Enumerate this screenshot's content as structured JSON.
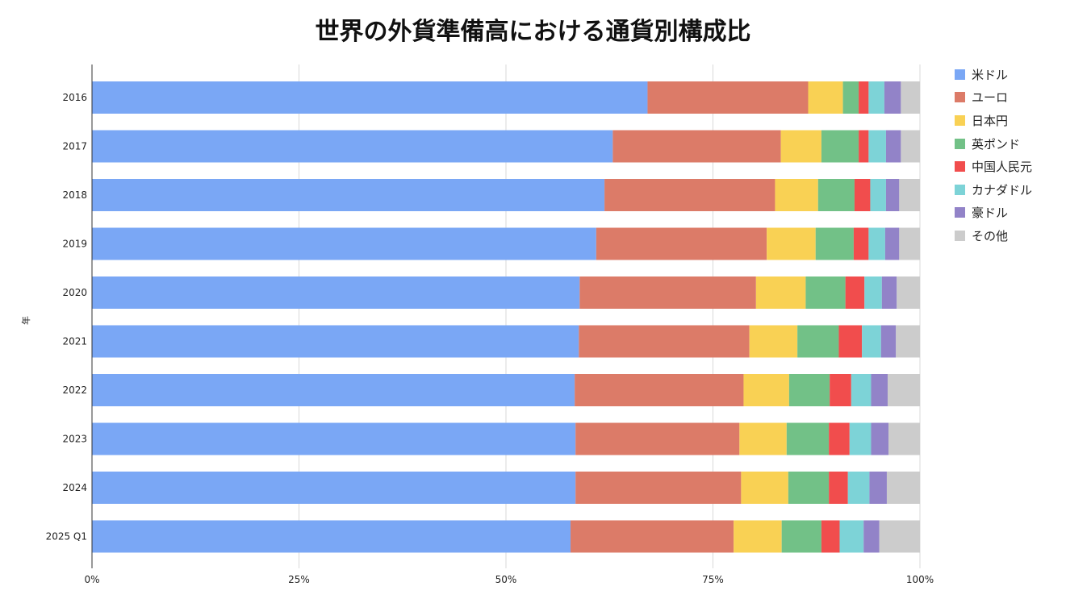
{
  "chart_data": {
    "type": "bar",
    "orientation": "horizontal",
    "stacked": true,
    "percent": true,
    "title": "世界の外貨準備高における通貨別構成比",
    "ylabel": "年",
    "xlim": [
      0,
      100
    ],
    "xticks": [
      "0%",
      "25%",
      "50%",
      "75%",
      "100%"
    ],
    "grid": true,
    "legend_position": "right",
    "categories": [
      "2016",
      "2017",
      "2018",
      "2019",
      "2020",
      "2021",
      "2022",
      "2023",
      "2024",
      "2025 Q1"
    ],
    "series": [
      {
        "name": "米ドル",
        "color": "#7aa7f5",
        "values": [
          67.1,
          62.9,
          61.9,
          60.9,
          58.9,
          58.8,
          58.3,
          58.4,
          58.4,
          57.8
        ]
      },
      {
        "name": "ユーロ",
        "color": "#dc7b68",
        "values": [
          19.4,
          20.3,
          20.6,
          20.6,
          21.3,
          20.6,
          20.4,
          19.8,
          20.0,
          19.7
        ]
      },
      {
        "name": "日本円",
        "color": "#f9d154",
        "values": [
          4.2,
          4.9,
          5.2,
          5.9,
          6.0,
          5.8,
          5.5,
          5.7,
          5.7,
          5.8
        ]
      },
      {
        "name": "英ポンド",
        "color": "#72c187",
        "values": [
          1.9,
          4.5,
          4.4,
          4.6,
          4.8,
          5.0,
          4.9,
          5.1,
          4.9,
          4.8
        ]
      },
      {
        "name": "中国人民元",
        "color": "#f14d4d",
        "values": [
          1.2,
          1.2,
          1.9,
          1.8,
          2.3,
          2.8,
          2.6,
          2.5,
          2.3,
          2.2
        ]
      },
      {
        "name": "カナダドル",
        "color": "#7dd3d7",
        "values": [
          1.9,
          2.1,
          1.9,
          2.0,
          2.1,
          2.3,
          2.4,
          2.6,
          2.6,
          2.9
        ]
      },
      {
        "name": "豪ドル",
        "color": "#9283c8",
        "values": [
          2.0,
          1.8,
          1.6,
          1.7,
          1.8,
          1.8,
          2.0,
          2.1,
          2.1,
          1.9
        ]
      },
      {
        "name": "その他",
        "color": "#cccccc",
        "values": [
          2.3,
          2.3,
          2.5,
          2.5,
          2.8,
          2.9,
          3.9,
          3.8,
          4.0,
          4.9
        ]
      }
    ]
  }
}
